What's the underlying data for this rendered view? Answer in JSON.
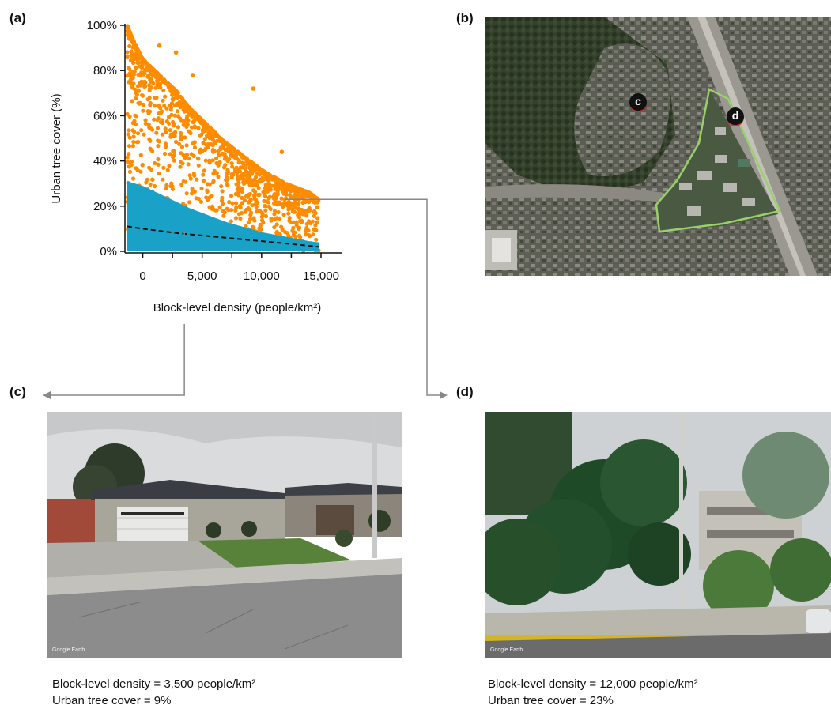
{
  "panels": {
    "a": "(a)",
    "b": "(b)",
    "c": "(c)",
    "d": "(d)"
  },
  "chart_data": {
    "type": "scatter",
    "title": "",
    "xlabel": "Block-level density (people/km²)",
    "ylabel": "Urban tree cover (%)",
    "xlim": [
      -1500,
      15000
    ],
    "ylim": [
      0,
      100
    ],
    "xticks": [
      0,
      5000,
      10000,
      15000
    ],
    "xtick_labels": [
      "0",
      "5,000",
      "10,000",
      "15,000"
    ],
    "yticks": [
      0,
      20,
      40,
      60,
      80,
      100
    ],
    "ytick_labels": [
      "0%",
      "20%",
      "40%",
      "60%",
      "80%",
      "100%"
    ],
    "grid": false,
    "colors": {
      "scatter": "#ff8c00",
      "fill": "#1aa1c8",
      "dashed": "#111111",
      "connector": "#888888"
    },
    "upper_envelope": {
      "x": [
        -1300,
        -1000,
        -500,
        0,
        1000,
        2000,
        3000,
        4000,
        5000,
        6000,
        7000,
        8000,
        9000,
        10000,
        11000,
        12000,
        13000,
        14000,
        14800
      ],
      "y": [
        100,
        96,
        90,
        85,
        80,
        75,
        70,
        63,
        58,
        53,
        48,
        44,
        40,
        36,
        33,
        30,
        28,
        26,
        23
      ]
    },
    "outliers": [
      {
        "x": 1400,
        "y": 91
      },
      {
        "x": 4200,
        "y": 78
      },
      {
        "x": 9300,
        "y": 72
      },
      {
        "x": 11700,
        "y": 44
      },
      {
        "x": 6800,
        "y": 48
      },
      {
        "x": 2800,
        "y": 88
      }
    ],
    "fitted_fill": {
      "x": [
        -1300,
        0,
        1000,
        2000,
        3000,
        4000,
        5000,
        6000,
        7000,
        8000,
        9000,
        10000,
        11000,
        12000,
        13000,
        14000,
        14800
      ],
      "y": [
        31,
        29,
        26.5,
        24,
        21.5,
        19,
        17,
        15,
        13,
        11.5,
        10,
        8.5,
        7.5,
        6.5,
        5.5,
        4.5,
        4
      ]
    },
    "dashed_line": {
      "x": [
        -1300,
        0,
        3000,
        6000,
        9000,
        12000,
        14800
      ],
      "y": [
        11,
        10,
        8,
        6.5,
        5,
        3.5,
        2
      ]
    },
    "markers": [
      {
        "label": "c",
        "x": 3500,
        "y": 9
      },
      {
        "label": "d",
        "x": 12000,
        "y": 23
      }
    ]
  },
  "captions": {
    "c": {
      "density": "Block-level density = 3,500 people/km²",
      "cover": "Urban tree cover = 9%"
    },
    "d": {
      "density": "Block-level density = 12,000 people/km²",
      "cover": "Urban tree cover = 23%"
    }
  },
  "map_markers": {
    "c": "c",
    "d": "d"
  },
  "watermarks": {
    "c": "Google Earth",
    "d": "Google Earth"
  }
}
